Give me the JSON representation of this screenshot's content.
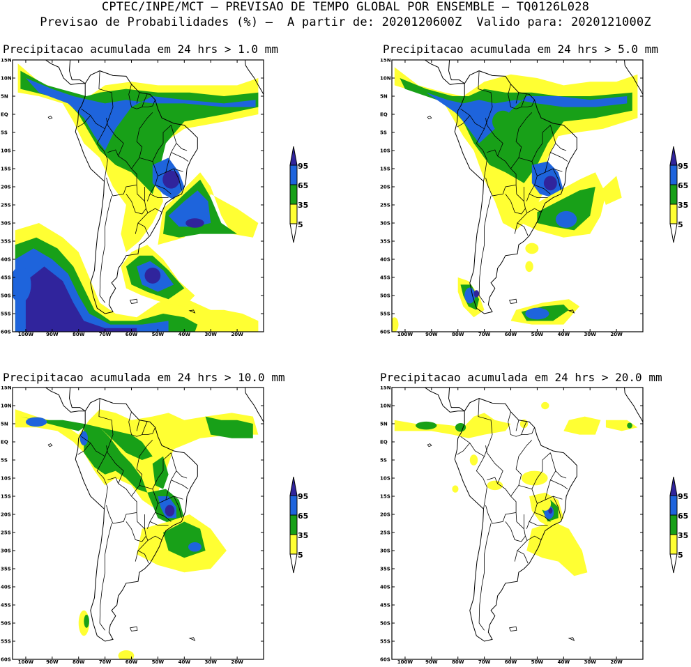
{
  "header": {
    "line1": "CPTEC/INPE/MCT – PREVISAO DE TEMPO GLOBAL POR ENSEMBLE – TQ0126L028",
    "line2": "Previsao de Probabilidades (%) –  A partir de: 2020120600Z  Valido para: 2020121000Z"
  },
  "panels": [
    {
      "title": "Precipitacao acumulada em 24 hrs > 1.0 mm"
    },
    {
      "title": "Precipitacao acumulada em 24 hrs > 5.0 mm"
    },
    {
      "title": "Precipitacao acumulada em 24 hrs > 10.0 mm"
    },
    {
      "title": "Precipitacao acumulada em 24 hrs > 20.0 mm"
    }
  ],
  "axes": {
    "lat_labels": [
      "15N",
      "10N",
      "5N",
      "EQ",
      "5S",
      "10S",
      "15S",
      "20S",
      "25S",
      "30S",
      "35S",
      "40S",
      "45S",
      "50S",
      "55S",
      "60S"
    ],
    "lon_labels": [
      "100W",
      "90W",
      "80W",
      "70W",
      "60W",
      "50W",
      "40W",
      "30W",
      "20W"
    ]
  },
  "legend": {
    "levels": [
      "95",
      "65",
      "35",
      "5"
    ],
    "colors": {
      "low": "#ffff33",
      "mid": "#18a018",
      "high": "#1e64dc",
      "top": "#30249c"
    }
  }
}
